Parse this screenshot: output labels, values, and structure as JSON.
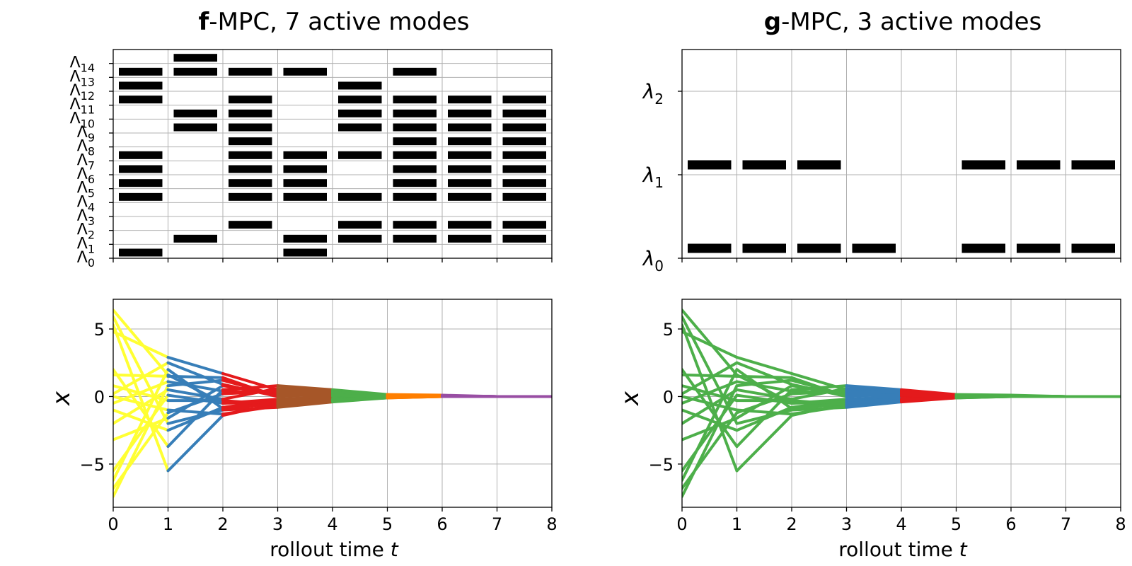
{
  "chart_data": [
    {
      "type": "heatmap",
      "panel": "top-left",
      "title_bold": "f",
      "title_rest": "-MPC, 7 active modes",
      "xlim": [
        0,
        8
      ],
      "xticks": [
        0,
        1,
        2,
        3,
        4,
        5,
        6,
        7,
        8
      ],
      "ylim": [
        0,
        15
      ],
      "mode_symbol": "Λ",
      "mode_count": 15,
      "mode_indices": [
        "0",
        "1",
        "2",
        "3",
        "4",
        "5",
        "6",
        "7",
        "8",
        "9",
        "10",
        "11",
        "12",
        "13",
        "14"
      ],
      "active": [
        [
          0,
          4,
          5,
          6,
          7,
          11,
          12,
          13
        ],
        [
          1,
          9,
          10,
          13,
          14
        ],
        [
          2,
          4,
          5,
          6,
          7,
          8,
          9,
          10,
          11,
          13
        ],
        [
          0,
          1,
          4,
          5,
          6,
          7,
          13
        ],
        [
          1,
          2,
          4,
          7,
          9,
          10,
          11,
          12
        ],
        [
          1,
          2,
          4,
          5,
          6,
          7,
          8,
          9,
          10,
          11,
          13
        ],
        [
          1,
          2,
          4,
          5,
          6,
          7,
          8,
          9,
          10,
          11
        ],
        [
          1,
          2,
          4,
          5,
          6,
          7,
          8,
          9,
          10,
          11
        ]
      ]
    },
    {
      "type": "heatmap",
      "panel": "top-right",
      "title_bold": "g",
      "title_rest": "-MPC, 3 active modes",
      "xlim": [
        0,
        8
      ],
      "xticks": [
        0,
        1,
        2,
        3,
        4,
        5,
        6,
        7,
        8
      ],
      "ylim": [
        0,
        2.5
      ],
      "mode_symbol": "λ",
      "mode_count": 3,
      "mode_indices": [
        "0",
        "1",
        "2"
      ],
      "active": [
        [
          0,
          1
        ],
        [
          0,
          1
        ],
        [
          0,
          1
        ],
        [
          0
        ],
        [],
        [
          0,
          1
        ],
        [
          0,
          1
        ],
        [
          0,
          1
        ]
      ]
    },
    {
      "type": "line",
      "panel": "bottom-left",
      "xlabel_text": "rollout time ",
      "xlabel_var": "t",
      "ylabel": "x",
      "xlim": [
        0,
        8
      ],
      "ylim": [
        -8.2,
        7.2
      ],
      "xticks": [
        0,
        1,
        2,
        3,
        4,
        5,
        6,
        7,
        8
      ],
      "yticks": [
        -5,
        0,
        5
      ],
      "ytick_labels": [
        "−5",
        "0",
        "5"
      ],
      "x": [
        0,
        1,
        2,
        3,
        4,
        5,
        6,
        7,
        8
      ],
      "segment_colors": [
        "#ffff33",
        "#377eb8",
        "#e41a1c",
        "#a65628",
        "#4daf4a",
        "#ff7f00",
        "#984ea3",
        "#984ea3"
      ],
      "series": [
        {
          "values": [
            6.4,
            1.6,
            -0.5,
            -0.2,
            0.0,
            0.0,
            0.05,
            0.0,
            0.0
          ]
        },
        {
          "values": [
            5.9,
            -2.0,
            -1.0,
            -0.8,
            -0.4,
            -0.1,
            0.05,
            0.0,
            0.0
          ]
        },
        {
          "values": [
            5.3,
            -5.5,
            -1.4,
            -0.5,
            -0.2,
            -0.05,
            0.0,
            0.0,
            0.0
          ]
        },
        {
          "values": [
            4.8,
            2.9,
            1.7,
            0.5,
            0.3,
            0.1,
            0.05,
            0.0,
            0.0
          ]
        },
        {
          "values": [
            2.0,
            -3.7,
            0.5,
            0.8,
            0.5,
            0.15,
            0.1,
            0.0,
            0.0
          ]
        },
        {
          "values": [
            1.6,
            1.5,
            1.4,
            0.0,
            0.4,
            0.1,
            0.05,
            0.0,
            0.0
          ]
        },
        {
          "values": [
            0.8,
            -0.3,
            -0.3,
            -0.6,
            -0.3,
            0.0,
            0.05,
            0.0,
            0.0
          ]
        },
        {
          "values": [
            0.2,
            2.5,
            0.9,
            0.0,
            0.2,
            0.0,
            0.0,
            0.0,
            0.0
          ]
        },
        {
          "values": [
            0.0,
            -1.0,
            -1.3,
            -0.7,
            -0.3,
            -0.1,
            0.0,
            0.0,
            0.0
          ]
        },
        {
          "values": [
            -0.5,
            1.1,
            0.4,
            0.3,
            0.3,
            0.1,
            0.05,
            0.0,
            0.0
          ]
        },
        {
          "values": [
            -1.0,
            -2.5,
            -0.8,
            -0.3,
            -0.2,
            0.0,
            0.0,
            0.0,
            0.0
          ]
        },
        {
          "values": [
            -2.0,
            0.5,
            -0.2,
            0.6,
            0.4,
            0.1,
            0.05,
            0.0,
            0.0
          ]
        },
        {
          "values": [
            -3.2,
            -1.6,
            0.8,
            0.2,
            0.1,
            0.0,
            0.0,
            0.0,
            0.0
          ]
        },
        {
          "values": [
            -5.5,
            0.1,
            -0.5,
            -0.4,
            -0.2,
            -0.05,
            0.0,
            0.0,
            0.0
          ]
        },
        {
          "values": [
            -6.2,
            2.0,
            -0.9,
            -0.5,
            -0.3,
            -0.1,
            0.0,
            0.0,
            0.0
          ]
        },
        {
          "values": [
            -6.8,
            -1.2,
            0.2,
            0.4,
            0.3,
            0.1,
            0.05,
            0.0,
            0.0
          ]
        },
        {
          "values": [
            -7.4,
            0.8,
            1.2,
            0.1,
            0.1,
            0.0,
            0.0,
            0.0,
            0.0
          ]
        }
      ]
    },
    {
      "type": "line",
      "panel": "bottom-right",
      "xlabel_text": "rollout time ",
      "xlabel_var": "t",
      "ylabel": "x",
      "xlim": [
        0,
        8
      ],
      "ylim": [
        -8.2,
        7.2
      ],
      "xticks": [
        0,
        1,
        2,
        3,
        4,
        5,
        6,
        7,
        8
      ],
      "yticks": [
        -5,
        0,
        5
      ],
      "ytick_labels": [
        "−5",
        "0",
        "5"
      ],
      "x": [
        0,
        1,
        2,
        3,
        4,
        5,
        6,
        7,
        8
      ],
      "segment_colors": [
        "#4daf4a",
        "#4daf4a",
        "#4daf4a",
        "#377eb8",
        "#e41a1c",
        "#4daf4a",
        "#4daf4a",
        "#4daf4a"
      ],
      "series": [
        {
          "values": [
            6.4,
            1.6,
            -0.5,
            -0.2,
            0.0,
            0.0,
            0.05,
            0.0,
            0.0
          ]
        },
        {
          "values": [
            5.9,
            -2.0,
            -1.0,
            -0.8,
            -0.4,
            -0.1,
            0.05,
            0.0,
            0.0
          ]
        },
        {
          "values": [
            5.3,
            -5.5,
            -1.4,
            -0.5,
            -0.2,
            -0.05,
            0.0,
            0.0,
            0.0
          ]
        },
        {
          "values": [
            4.8,
            2.9,
            1.7,
            0.5,
            0.3,
            0.1,
            0.05,
            0.0,
            0.0
          ]
        },
        {
          "values": [
            2.0,
            -3.7,
            0.5,
            0.8,
            0.5,
            0.15,
            0.1,
            0.0,
            0.0
          ]
        },
        {
          "values": [
            1.6,
            1.5,
            1.4,
            0.0,
            0.4,
            0.1,
            0.05,
            0.0,
            0.0
          ]
        },
        {
          "values": [
            0.8,
            -0.3,
            -0.3,
            -0.6,
            -0.3,
            0.0,
            0.05,
            0.0,
            0.0
          ]
        },
        {
          "values": [
            0.2,
            2.5,
            0.9,
            0.0,
            0.2,
            0.0,
            0.0,
            0.0,
            0.0
          ]
        },
        {
          "values": [
            0.0,
            -1.0,
            -1.3,
            -0.7,
            -0.3,
            -0.1,
            0.0,
            0.0,
            0.0
          ]
        },
        {
          "values": [
            -0.5,
            1.1,
            0.4,
            0.3,
            0.3,
            0.1,
            0.05,
            0.0,
            0.0
          ]
        },
        {
          "values": [
            -1.0,
            -2.5,
            -0.8,
            -0.3,
            -0.2,
            0.0,
            0.0,
            0.0,
            0.0
          ]
        },
        {
          "values": [
            -2.0,
            0.5,
            -0.2,
            0.6,
            0.4,
            0.1,
            0.05,
            0.0,
            0.0
          ]
        },
        {
          "values": [
            -3.2,
            -1.6,
            0.8,
            0.2,
            0.1,
            0.0,
            0.0,
            0.0,
            0.0
          ]
        },
        {
          "values": [
            -5.5,
            0.1,
            -0.5,
            -0.4,
            -0.2,
            -0.05,
            0.0,
            0.0,
            0.0
          ]
        },
        {
          "values": [
            -6.2,
            2.0,
            -0.9,
            -0.5,
            -0.3,
            -0.1,
            0.0,
            0.0,
            0.0
          ]
        },
        {
          "values": [
            -6.8,
            -1.2,
            0.2,
            0.4,
            0.3,
            0.1,
            0.05,
            0.0,
            0.0
          ]
        },
        {
          "values": [
            -7.4,
            0.8,
            1.2,
            0.1,
            0.1,
            0.0,
            0.0,
            0.0,
            0.0
          ]
        }
      ]
    }
  ]
}
